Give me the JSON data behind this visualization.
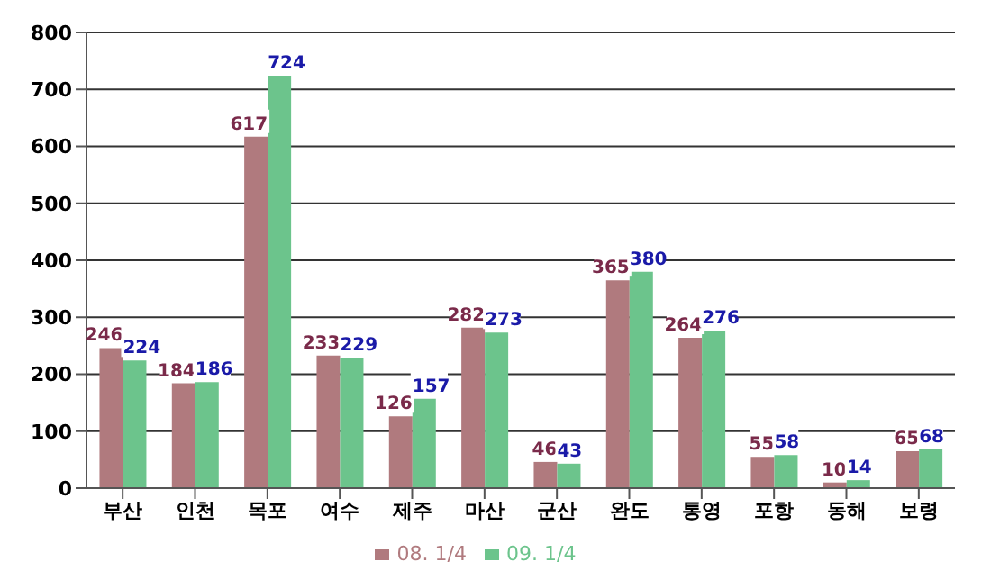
{
  "chart_data": {
    "type": "bar",
    "categories": [
      "부산",
      "인천",
      "목포",
      "여수",
      "제주",
      "마산",
      "군산",
      "완도",
      "통영",
      "포항",
      "동해",
      "보령"
    ],
    "series": [
      {
        "name": "08. 1/4",
        "color": "#b07a7e",
        "values": [
          246,
          184,
          617,
          233,
          126,
          282,
          46,
          365,
          264,
          55,
          10,
          65
        ]
      },
      {
        "name": "09. 1/4",
        "color": "#6cc48c",
        "values": [
          224,
          186,
          724,
          229,
          157,
          273,
          43,
          380,
          276,
          58,
          14,
          68
        ]
      }
    ],
    "ylim": [
      0,
      800
    ],
    "yticks": [
      0,
      100,
      200,
      300,
      400,
      500,
      600,
      700,
      800
    ],
    "grid": "y",
    "legend": "bottom",
    "data_labels": true
  }
}
